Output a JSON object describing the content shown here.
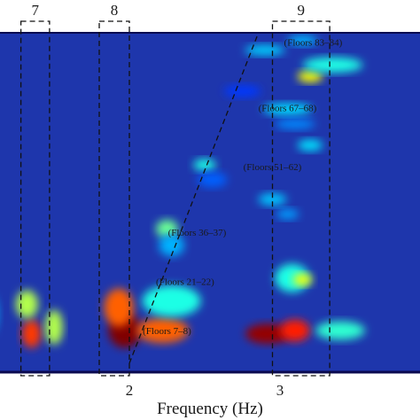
{
  "chart_data": {
    "type": "heatmap",
    "title": "",
    "xlabel": "Frequency (Hz)",
    "ylabel": "",
    "colormap": "jet",
    "x_ticks": [
      {
        "value": 2,
        "label": "2"
      },
      {
        "value": 3,
        "label": "3"
      }
    ],
    "band_labels": [
      {
        "text": "(Floors 83–84)",
        "x": 3.22,
        "y": 0.98
      },
      {
        "text": "(Floors 67–68)",
        "x": 3.05,
        "y": 0.78
      },
      {
        "text": "(Floors 51–62)",
        "x": 2.95,
        "y": 0.6
      },
      {
        "text": "(Floors 36–37)",
        "x": 2.45,
        "y": 0.4
      },
      {
        "text": "(Floors 21–22)",
        "x": 2.37,
        "y": 0.25
      },
      {
        "text": "(Floors 7–8)",
        "x": 2.25,
        "y": 0.1
      }
    ],
    "highlight_boxes": [
      {
        "label": "7",
        "x_start": 1.28,
        "x_end": 1.47
      },
      {
        "label": "8",
        "x_start": 1.8,
        "x_end": 2.0
      },
      {
        "label": "9",
        "x_start": 2.95,
        "x_end": 3.33
      }
    ],
    "trend_line": {
      "x_start": 2.0,
      "y_start": 0.0,
      "x_end": 2.85,
      "y_end": 1.0
    },
    "blobs": [
      {
        "x": 1.35,
        "y": 0.09,
        "w": 0.08,
        "h": 0.07,
        "v": 0.82
      },
      {
        "x": 1.32,
        "y": 0.18,
        "w": 0.1,
        "h": 0.07,
        "v": 0.55
      },
      {
        "x": 1.05,
        "y": 0.15,
        "w": 0.1,
        "h": 0.12,
        "v": 0.3
      },
      {
        "x": 1.5,
        "y": 0.11,
        "w": 0.07,
        "h": 0.09,
        "v": 0.55
      },
      {
        "x": 1.97,
        "y": 0.1,
        "w": 0.17,
        "h": 0.09,
        "v": 1.0
      },
      {
        "x": 1.93,
        "y": 0.17,
        "w": 0.15,
        "h": 0.1,
        "v": 0.78
      },
      {
        "x": 2.22,
        "y": 0.1,
        "w": 0.3,
        "h": 0.06,
        "v": 0.78
      },
      {
        "x": 2.28,
        "y": 0.19,
        "w": 0.34,
        "h": 0.08,
        "v": 0.4
      },
      {
        "x": 2.92,
        "y": 0.09,
        "w": 0.25,
        "h": 0.045,
        "v": 0.98
      },
      {
        "x": 3.1,
        "y": 0.1,
        "w": 0.15,
        "h": 0.05,
        "v": 0.85
      },
      {
        "x": 3.4,
        "y": 0.1,
        "w": 0.28,
        "h": 0.04,
        "v": 0.42
      },
      {
        "x": 3.08,
        "y": 0.26,
        "w": 0.18,
        "h": 0.07,
        "v": 0.4
      },
      {
        "x": 3.15,
        "y": 0.255,
        "w": 0.08,
        "h": 0.02,
        "v": 0.62
      },
      {
        "x": 2.25,
        "y": 0.41,
        "w": 0.1,
        "h": 0.04,
        "v": 0.48
      },
      {
        "x": 2.28,
        "y": 0.36,
        "w": 0.12,
        "h": 0.05,
        "v": 0.3
      },
      {
        "x": 2.5,
        "y": 0.605,
        "w": 0.1,
        "h": 0.02,
        "v": 0.4
      },
      {
        "x": 2.95,
        "y": 0.5,
        "w": 0.14,
        "h": 0.02,
        "v": 0.32
      },
      {
        "x": 3.05,
        "y": 0.455,
        "w": 0.1,
        "h": 0.015,
        "v": 0.28
      },
      {
        "x": 3.2,
        "y": 0.665,
        "w": 0.12,
        "h": 0.018,
        "v": 0.35
      },
      {
        "x": 3.05,
        "y": 0.775,
        "w": 0.28,
        "h": 0.02,
        "v": 0.34
      },
      {
        "x": 3.1,
        "y": 0.73,
        "w": 0.22,
        "h": 0.015,
        "v": 0.26
      },
      {
        "x": 3.2,
        "y": 0.875,
        "w": 0.12,
        "h": 0.02,
        "v": 0.62
      },
      {
        "x": 3.35,
        "y": 0.91,
        "w": 0.35,
        "h": 0.03,
        "v": 0.4
      },
      {
        "x": 2.9,
        "y": 0.955,
        "w": 0.22,
        "h": 0.015,
        "v": 0.33
      },
      {
        "x": 3.15,
        "y": 0.985,
        "w": 0.15,
        "h": 0.015,
        "v": 0.3
      },
      {
        "x": 2.55,
        "y": 0.56,
        "w": 0.15,
        "h": 0.03,
        "v": 0.22
      },
      {
        "x": 2.75,
        "y": 0.83,
        "w": 0.2,
        "h": 0.02,
        "v": 0.18
      }
    ]
  }
}
